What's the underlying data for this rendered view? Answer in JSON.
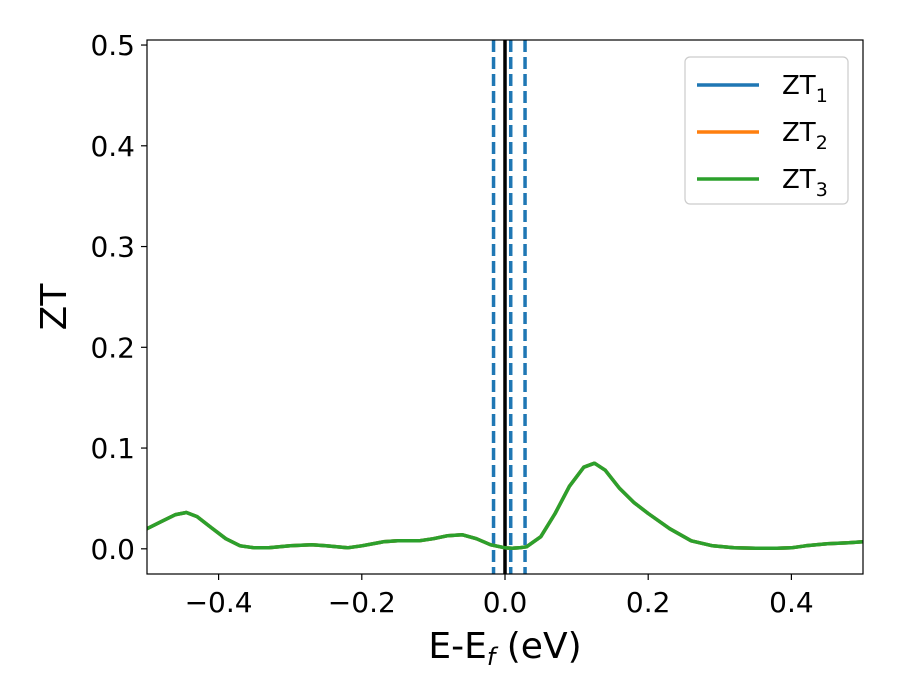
{
  "chart_data": {
    "type": "line",
    "xlabel": "E-E",
    "xlabel_sub": "f",
    "xlabel_suffix": " (eV)",
    "ylabel": "ZT",
    "xlim": [
      -0.5,
      0.5
    ],
    "ylim": [
      -0.025,
      0.505
    ],
    "xticks": [
      -0.4,
      -0.2,
      0.0,
      0.2,
      0.4
    ],
    "xtick_labels": [
      "−0.4",
      "−0.2",
      "0.0",
      "0.2",
      "0.4"
    ],
    "yticks": [
      0.0,
      0.1,
      0.2,
      0.3,
      0.4,
      0.5
    ],
    "ytick_labels": [
      "0.0",
      "0.1",
      "0.2",
      "0.3",
      "0.4",
      "0.5"
    ],
    "legend_position": "top-right",
    "series": [
      {
        "name": "ZT",
        "sub": "1",
        "color": "#1f77b4",
        "x": [
          -0.5,
          -0.48,
          -0.46,
          -0.445,
          -0.43,
          -0.41,
          -0.39,
          -0.37,
          -0.35,
          -0.33,
          -0.3,
          -0.27,
          -0.25,
          -0.22,
          -0.2,
          -0.17,
          -0.15,
          -0.12,
          -0.1,
          -0.08,
          -0.06,
          -0.04,
          -0.02,
          0.0,
          0.01,
          0.02,
          0.03,
          0.05,
          0.07,
          0.09,
          0.11,
          0.125,
          0.14,
          0.16,
          0.18,
          0.2,
          0.23,
          0.26,
          0.29,
          0.32,
          0.35,
          0.38,
          0.4,
          0.42,
          0.45,
          0.48,
          0.5
        ],
        "y": [
          0.02,
          0.027,
          0.034,
          0.036,
          0.032,
          0.021,
          0.01,
          0.003,
          0.001,
          0.001,
          0.003,
          0.004,
          0.003,
          0.001,
          0.003,
          0.007,
          0.008,
          0.008,
          0.01,
          0.013,
          0.014,
          0.01,
          0.004,
          0.001,
          0.0005,
          0.001,
          0.002,
          0.012,
          0.035,
          0.062,
          0.081,
          0.085,
          0.078,
          0.06,
          0.046,
          0.035,
          0.02,
          0.008,
          0.003,
          0.001,
          0.0005,
          0.0005,
          0.001,
          0.003,
          0.005,
          0.006,
          0.007
        ]
      },
      {
        "name": "ZT",
        "sub": "2",
        "color": "#ff7f0e",
        "x": [
          -0.5,
          -0.48,
          -0.46,
          -0.445,
          -0.43,
          -0.41,
          -0.39,
          -0.37,
          -0.35,
          -0.33,
          -0.3,
          -0.27,
          -0.25,
          -0.22,
          -0.2,
          -0.17,
          -0.15,
          -0.12,
          -0.1,
          -0.08,
          -0.06,
          -0.04,
          -0.02,
          0.0,
          0.01,
          0.02,
          0.03,
          0.05,
          0.07,
          0.09,
          0.11,
          0.125,
          0.14,
          0.16,
          0.18,
          0.2,
          0.23,
          0.26,
          0.29,
          0.32,
          0.35,
          0.38,
          0.4,
          0.42,
          0.45,
          0.48,
          0.5
        ],
        "y": [
          0.02,
          0.027,
          0.034,
          0.036,
          0.032,
          0.021,
          0.01,
          0.003,
          0.001,
          0.001,
          0.003,
          0.004,
          0.003,
          0.001,
          0.003,
          0.007,
          0.008,
          0.008,
          0.01,
          0.013,
          0.014,
          0.01,
          0.004,
          0.001,
          0.0005,
          0.001,
          0.002,
          0.012,
          0.035,
          0.062,
          0.081,
          0.085,
          0.078,
          0.06,
          0.046,
          0.035,
          0.02,
          0.008,
          0.003,
          0.001,
          0.0005,
          0.0005,
          0.001,
          0.003,
          0.005,
          0.006,
          0.007
        ]
      },
      {
        "name": "ZT",
        "sub": "3",
        "color": "#2ca02c",
        "x": [
          -0.5,
          -0.48,
          -0.46,
          -0.445,
          -0.43,
          -0.41,
          -0.39,
          -0.37,
          -0.35,
          -0.33,
          -0.3,
          -0.27,
          -0.25,
          -0.22,
          -0.2,
          -0.17,
          -0.15,
          -0.12,
          -0.1,
          -0.08,
          -0.06,
          -0.04,
          -0.02,
          0.0,
          0.01,
          0.02,
          0.03,
          0.05,
          0.07,
          0.09,
          0.11,
          0.125,
          0.14,
          0.16,
          0.18,
          0.2,
          0.23,
          0.26,
          0.29,
          0.32,
          0.35,
          0.38,
          0.4,
          0.42,
          0.45,
          0.48,
          0.5
        ],
        "y": [
          0.02,
          0.027,
          0.034,
          0.036,
          0.032,
          0.021,
          0.01,
          0.003,
          0.001,
          0.001,
          0.003,
          0.004,
          0.003,
          0.001,
          0.003,
          0.007,
          0.008,
          0.008,
          0.01,
          0.013,
          0.014,
          0.01,
          0.004,
          0.001,
          0.0005,
          0.001,
          0.002,
          0.012,
          0.035,
          0.062,
          0.081,
          0.085,
          0.078,
          0.06,
          0.046,
          0.035,
          0.02,
          0.008,
          0.003,
          0.001,
          0.0005,
          0.0005,
          0.001,
          0.003,
          0.005,
          0.006,
          0.007
        ]
      }
    ],
    "vertical_lines": [
      {
        "x": -0.016,
        "style": "dashed",
        "color": "#1f77b4"
      },
      {
        "x": 0.0,
        "style": "solid",
        "color": "#000000"
      },
      {
        "x": 0.008,
        "style": "dashed",
        "color": "#1f77b4"
      },
      {
        "x": 0.028,
        "style": "dashed",
        "color": "#1f77b4"
      }
    ]
  }
}
